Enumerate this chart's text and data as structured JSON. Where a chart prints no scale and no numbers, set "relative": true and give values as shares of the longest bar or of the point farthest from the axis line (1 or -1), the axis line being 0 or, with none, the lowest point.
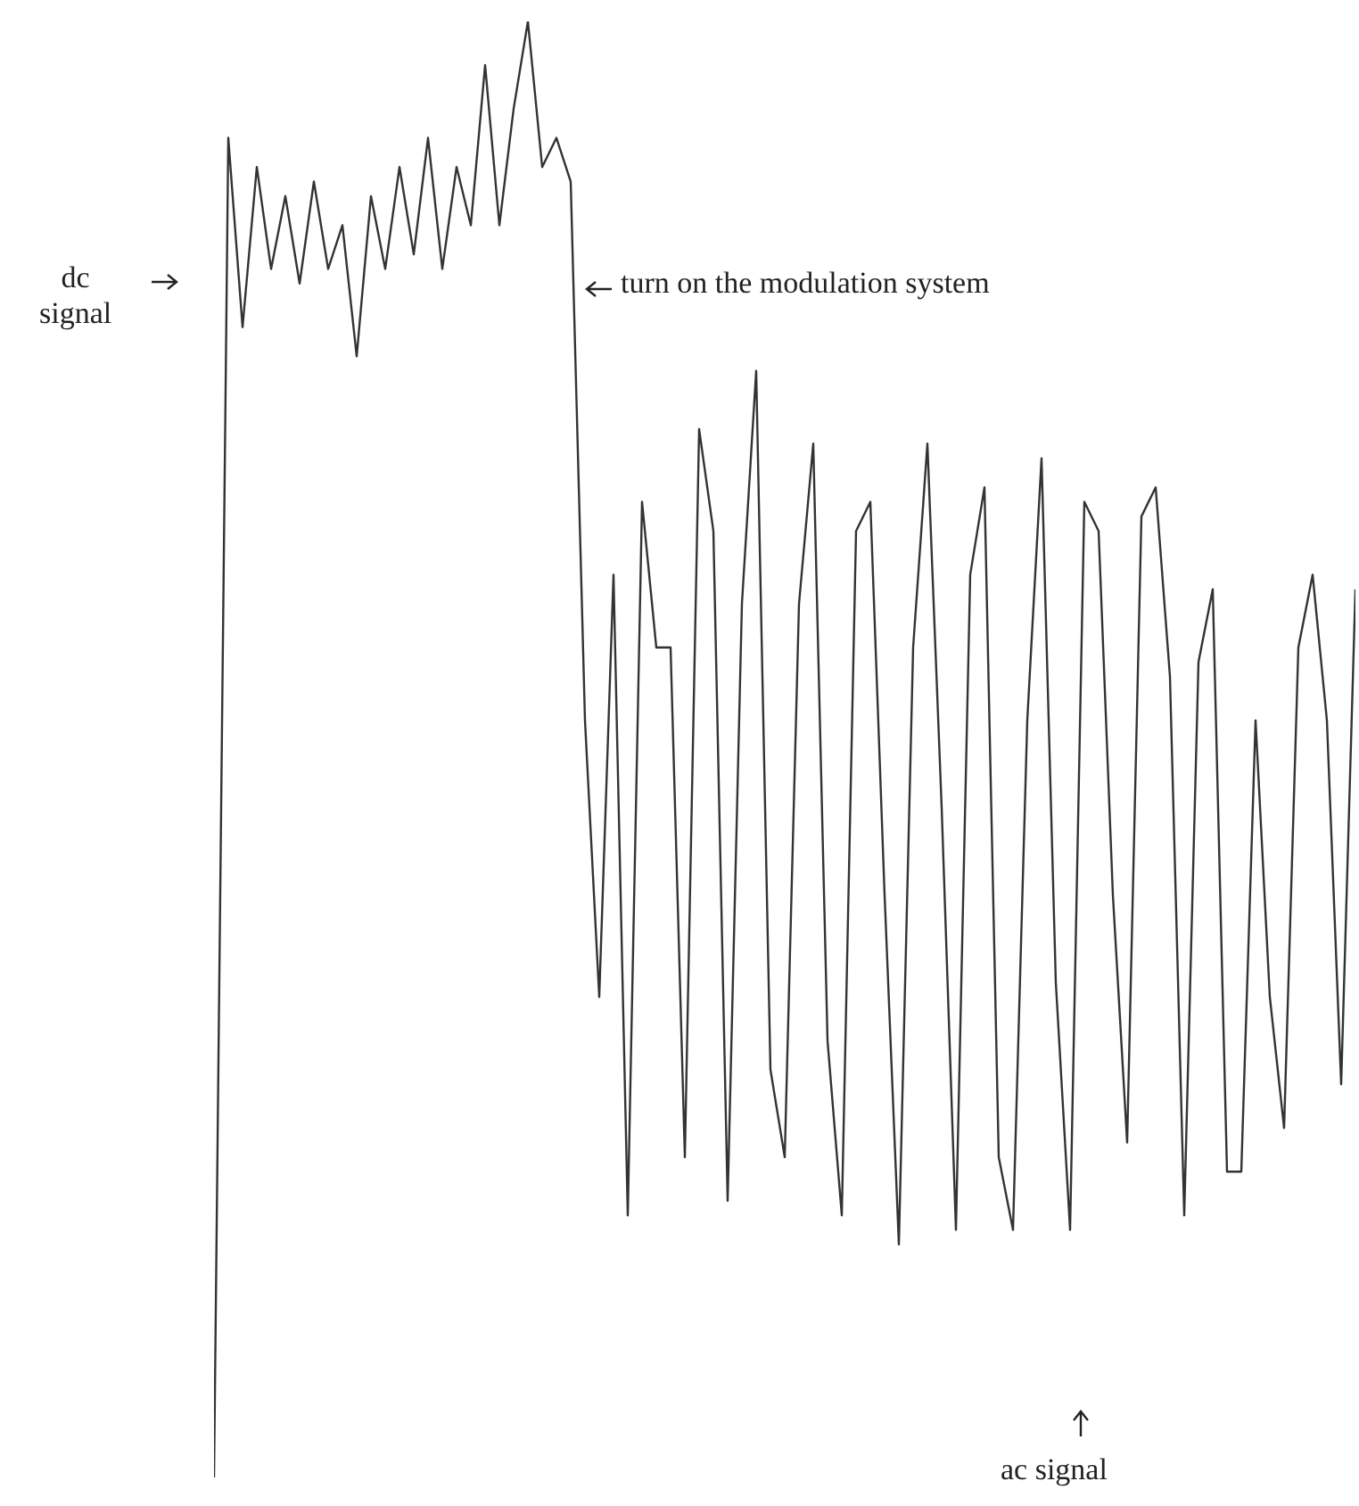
{
  "chart_data": {
    "type": "line",
    "relative": true,
    "annotations": [
      "dc signal",
      "turn on the modulation system",
      "ac signal"
    ],
    "categories": [
      null,
      null,
      null,
      null,
      null,
      null,
      null,
      null,
      null,
      null,
      null,
      null,
      null,
      null,
      null,
      null,
      null,
      null,
      null,
      null,
      null,
      null,
      null,
      null,
      null,
      null,
      null,
      null,
      null,
      null,
      null,
      null,
      null,
      null,
      null,
      null,
      null,
      null,
      null,
      null,
      null,
      null,
      null,
      null,
      null,
      null,
      null,
      null,
      null,
      null,
      null,
      null,
      null,
      null,
      null,
      null,
      null,
      null,
      null,
      null,
      null,
      null,
      null,
      null,
      null,
      null,
      null,
      null,
      null,
      null,
      null,
      null,
      null,
      null,
      null,
      null,
      null,
      null,
      null,
      null,
      null
    ],
    "series": [
      {
        "color": "#333333",
        "values": [
          0,
          0.92,
          0.79,
          0.9,
          0.83,
          0.88,
          0.82,
          0.89,
          0.83,
          0.86,
          0.77,
          0.88,
          0.83,
          0.9,
          0.84,
          0.92,
          0.83,
          0.9,
          0.86,
          0.97,
          0.86,
          0.94,
          1,
          0.9,
          0.92,
          0.89,
          0.52,
          0.33,
          0.62,
          0.18,
          0.67,
          0.57,
          0.57,
          0.22,
          0.72,
          0.65,
          0.19,
          0.6,
          0.76,
          0.28,
          0.22,
          0.6,
          0.71,
          0.3,
          0.18,
          0.65,
          0.67,
          0.4,
          0.16,
          0.57,
          0.71,
          0.46,
          0.17,
          0.62,
          0.68,
          0.22,
          0.17,
          0.52,
          0.7,
          0.34,
          0.17,
          0.67,
          0.65,
          0.4,
          0.23,
          0.66,
          0.68,
          0.55,
          0.18,
          0.56,
          0.61,
          0.21,
          0.21,
          0.52,
          0.33,
          0.24,
          0.57,
          0.62,
          0.52,
          0.27,
          0.61
        ]
      }
    ]
  }
}
